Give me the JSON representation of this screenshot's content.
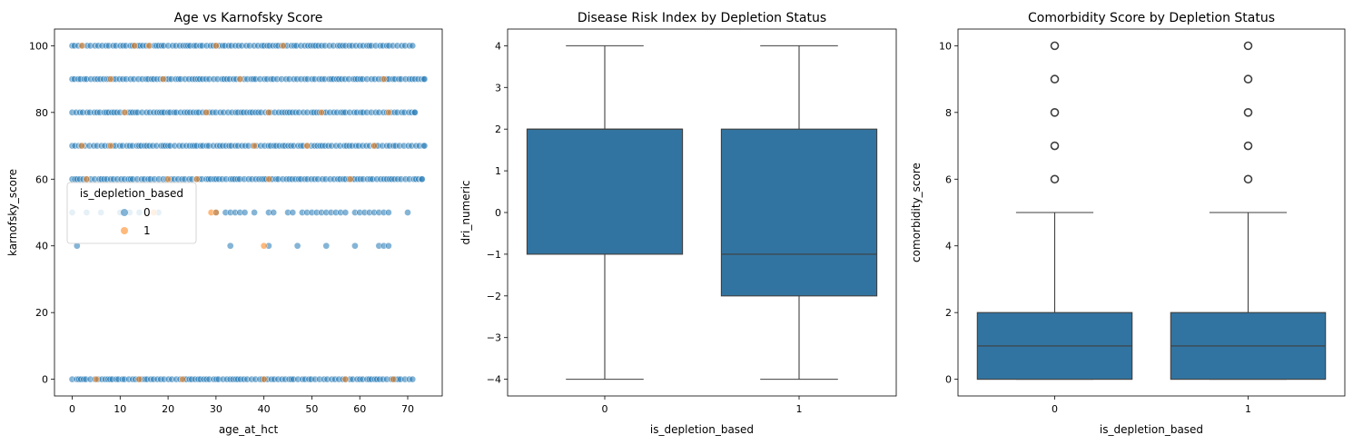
{
  "chart_data": [
    {
      "type": "scatter",
      "title": "Age vs Karnofsky Score",
      "xlabel": "age_at_hct",
      "ylabel": "karnofsky_score",
      "xlim": [
        -3.7,
        77.2
      ],
      "ylim": [
        -5,
        105
      ],
      "xticks": [
        0,
        10,
        20,
        30,
        40,
        50,
        60,
        70
      ],
      "yticks": [
        0,
        20,
        40,
        60,
        80,
        100
      ],
      "legend": {
        "title": "is_depletion_based",
        "placement": "left",
        "entries": [
          {
            "label": "0",
            "color": "#1f77b4"
          },
          {
            "label": "1",
            "color": "#ff7f0e"
          }
        ]
      },
      "series": [
        {
          "name": "0",
          "color": "#1f77b4",
          "bands": [
            {
              "y": 100,
              "x_range": [
                0,
                71
              ]
            },
            {
              "y": 90,
              "x_range": [
                0,
                73.5
              ]
            },
            {
              "y": 80,
              "x_range": [
                0,
                71.5
              ]
            },
            {
              "y": 70,
              "x_range": [
                0,
                73.5
              ]
            },
            {
              "y": 60,
              "x_range": [
                0,
                73
              ]
            },
            {
              "y": 0,
              "x_range": [
                0,
                71
              ]
            }
          ],
          "points": [
            [
              0,
              50
            ],
            [
              3,
              50
            ],
            [
              6,
              50
            ],
            [
              10,
              50
            ],
            [
              12,
              50
            ],
            [
              14,
              50
            ],
            [
              18,
              50
            ],
            [
              30,
              50
            ],
            [
              32,
              50
            ],
            [
              33,
              50
            ],
            [
              34,
              50
            ],
            [
              35,
              50
            ],
            [
              36,
              50
            ],
            [
              38,
              50
            ],
            [
              41,
              50
            ],
            [
              42,
              50
            ],
            [
              45,
              50
            ],
            [
              46,
              50
            ],
            [
              48,
              50
            ],
            [
              49,
              50
            ],
            [
              50,
              50
            ],
            [
              51,
              50
            ],
            [
              52,
              50
            ],
            [
              53,
              50
            ],
            [
              54,
              50
            ],
            [
              55,
              50
            ],
            [
              56,
              50
            ],
            [
              57,
              50
            ],
            [
              59,
              50
            ],
            [
              60,
              50
            ],
            [
              61,
              50
            ],
            [
              62,
              50
            ],
            [
              63,
              50
            ],
            [
              64,
              50
            ],
            [
              65,
              50
            ],
            [
              66,
              50
            ],
            [
              70,
              50
            ],
            [
              1,
              40
            ],
            [
              33,
              40
            ],
            [
              41,
              40
            ],
            [
              47,
              40
            ],
            [
              53,
              40
            ],
            [
              59,
              40
            ],
            [
              64,
              40
            ],
            [
              65,
              40
            ],
            [
              66,
              40
            ]
          ]
        },
        {
          "name": "1",
          "color": "#ff7f0e",
          "points": [
            [
              2,
              100
            ],
            [
              13,
              100
            ],
            [
              16,
              100
            ],
            [
              30,
              100
            ],
            [
              44,
              100
            ],
            [
              8,
              90
            ],
            [
              19,
              90
            ],
            [
              35,
              90
            ],
            [
              65,
              90
            ],
            [
              11,
              80
            ],
            [
              28,
              80
            ],
            [
              41,
              80
            ],
            [
              52,
              80
            ],
            [
              66,
              80
            ],
            [
              2,
              70
            ],
            [
              8,
              70
            ],
            [
              38,
              70
            ],
            [
              49,
              70
            ],
            [
              63,
              70
            ],
            [
              3,
              60
            ],
            [
              20,
              60
            ],
            [
              26,
              60
            ],
            [
              41,
              60
            ],
            [
              58,
              60
            ],
            [
              17,
              50
            ],
            [
              29,
              50
            ],
            [
              30,
              50
            ],
            [
              40,
              40
            ],
            [
              5,
              0
            ],
            [
              14,
              0
            ],
            [
              23,
              0
            ],
            [
              40,
              0
            ],
            [
              57,
              0
            ],
            [
              67,
              0
            ]
          ]
        }
      ]
    },
    {
      "type": "box",
      "title": "Disease Risk Index by Depletion Status",
      "xlabel": "is_depletion_based",
      "ylabel": "dri_numeric",
      "categories": [
        "0",
        "1"
      ],
      "ylim": [
        -4.4,
        4.4
      ],
      "yticks": [
        -4,
        -3,
        -2,
        -1,
        0,
        1,
        2,
        3,
        4
      ],
      "color": "#3274a1",
      "boxes": [
        {
          "category": "0",
          "whislo": -4,
          "q1": -1,
          "median": 2,
          "q3": 2,
          "whishi": 4,
          "fliers": []
        },
        {
          "category": "1",
          "whislo": -4,
          "q1": -2,
          "median": -1,
          "q3": 2,
          "whishi": 4,
          "fliers": []
        }
      ]
    },
    {
      "type": "box",
      "title": "Comorbidity Score by Depletion Status",
      "xlabel": "is_depletion_based",
      "ylabel": "comorbidity_score",
      "categories": [
        "0",
        "1"
      ],
      "ylim": [
        -0.5,
        10.5
      ],
      "yticks": [
        0,
        2,
        4,
        6,
        8,
        10
      ],
      "color": "#3274a1",
      "boxes": [
        {
          "category": "0",
          "whislo": 0,
          "q1": 0,
          "median": 1,
          "q3": 2,
          "whishi": 5,
          "fliers": [
            6,
            7,
            8,
            9,
            10
          ]
        },
        {
          "category": "1",
          "whislo": 0,
          "q1": 0,
          "median": 1,
          "q3": 2,
          "whishi": 5,
          "fliers": [
            6,
            7,
            8,
            9,
            10
          ]
        }
      ]
    }
  ]
}
